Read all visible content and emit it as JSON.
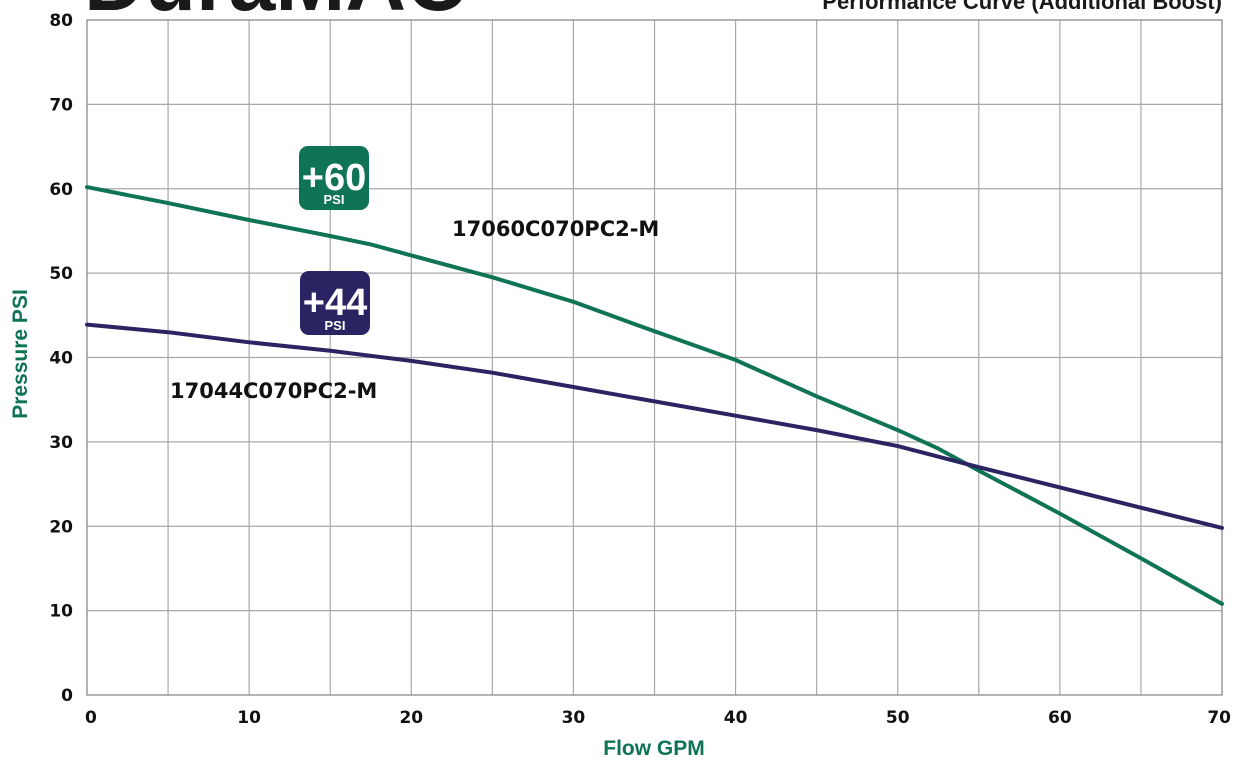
{
  "brand": "DuraMAC",
  "subtitle": "Performance Curve (Additional Boost)",
  "colors": {
    "green": "#0f7355",
    "navy": "#2b2463",
    "grid": "#a8a8a8"
  },
  "chart_data": {
    "type": "line",
    "xlabel": "Flow GPM",
    "ylabel": "Pressure PSI",
    "xlim": [
      0,
      70
    ],
    "ylim": [
      0,
      80
    ],
    "x_ticks": [
      0,
      10,
      20,
      30,
      40,
      50,
      60,
      70
    ],
    "y_ticks": [
      0,
      10,
      20,
      30,
      40,
      50,
      60,
      70,
      80
    ],
    "x_minor_gridlines": [
      5,
      15,
      25,
      35,
      45,
      55,
      65
    ],
    "grid": true,
    "series": [
      {
        "name": "17060C070PC2-M",
        "color": "#0f7355",
        "badge_value": "+60",
        "badge_unit": "PSI",
        "points": [
          [
            0,
            60.2
          ],
          [
            5,
            58.3
          ],
          [
            10,
            56.3
          ],
          [
            15,
            54.4
          ],
          [
            17.5,
            53.4
          ],
          [
            20,
            52.1
          ],
          [
            25,
            49.5
          ],
          [
            30,
            46.6
          ],
          [
            35,
            43.1
          ],
          [
            40,
            39.7
          ],
          [
            45,
            35.4
          ],
          [
            50,
            31.4
          ],
          [
            52.5,
            29.2
          ],
          [
            55,
            26.6
          ],
          [
            60,
            21.5
          ],
          [
            65,
            16.2
          ],
          [
            70,
            10.8
          ]
        ]
      },
      {
        "name": "17044C070PC2-M",
        "color": "#2b2463",
        "badge_value": "+44",
        "badge_unit": "PSI",
        "points": [
          [
            0,
            43.9
          ],
          [
            5,
            43.0
          ],
          [
            10,
            41.8
          ],
          [
            15,
            40.8
          ],
          [
            20,
            39.6
          ],
          [
            25,
            38.2
          ],
          [
            30,
            36.5
          ],
          [
            35,
            34.8
          ],
          [
            40,
            33.1
          ],
          [
            45,
            31.4
          ],
          [
            50,
            29.5
          ],
          [
            55,
            27.0
          ],
          [
            60,
            24.6
          ],
          [
            65,
            22.2
          ],
          [
            70,
            19.8
          ]
        ]
      }
    ]
  }
}
